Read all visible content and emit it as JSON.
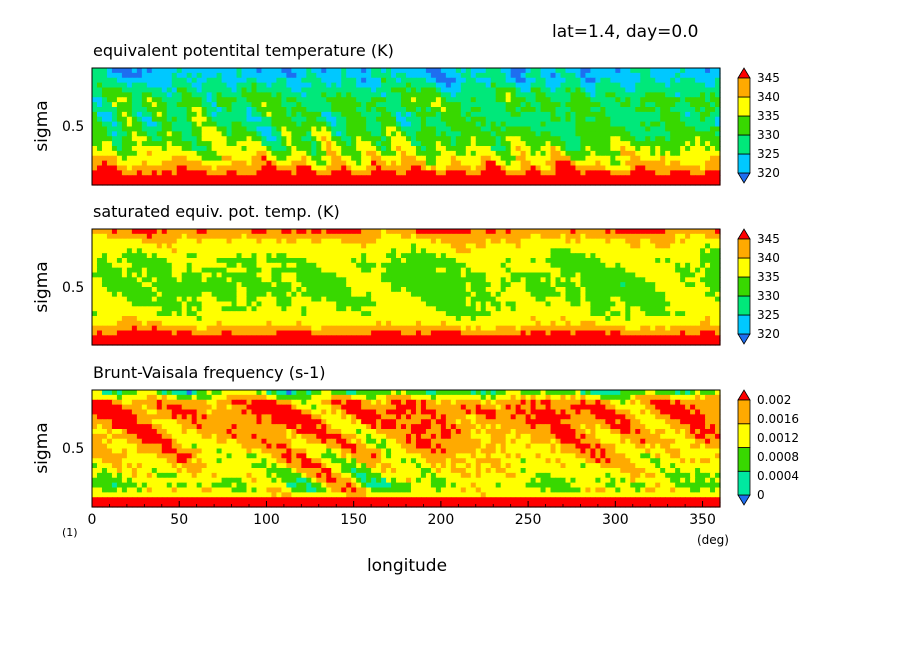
{
  "header": {
    "text": "lat=1.4, day=0.0"
  },
  "colors": {
    "levels_6": [
      "#1e6ef0",
      "#00c8ff",
      "#00e87a",
      "#38d800",
      "#ffff00",
      "#ffaa00",
      "#ff0000"
    ],
    "levels_5": [
      "#1e6ef0",
      "#00e8a0",
      "#38d800",
      "#ffff00",
      "#ffaa00",
      "#ff0000"
    ]
  },
  "xaxis": {
    "label": "longitude",
    "unit": "(deg)",
    "ticks": [
      "0",
      "50",
      "100",
      "150",
      "200",
      "250",
      "300",
      "350"
    ],
    "corner_note": "(1)"
  },
  "chart_data": [
    {
      "type": "heatmap",
      "title": "equivalent potentital temperature (K)",
      "ylabel": "sigma",
      "ytick": "0.5",
      "xlim": [
        0,
        360
      ],
      "ylim": [
        1,
        0
      ],
      "legend": [
        "345",
        "340",
        "335",
        "330",
        "325",
        "320"
      ],
      "levels": [
        320,
        325,
        330,
        335,
        340,
        345
      ],
      "profile": [
        322,
        324,
        327,
        331,
        330,
        329,
        331,
        333,
        336,
        340,
        346,
        350
      ],
      "noise": 9
    },
    {
      "type": "heatmap",
      "title": "saturated equiv. pot. temp. (K)",
      "ylabel": "sigma",
      "ytick": "0.5",
      "xlim": [
        0,
        360
      ],
      "ylim": [
        1,
        0
      ],
      "legend": [
        "345",
        "340",
        "335",
        "330",
        "325",
        "320"
      ],
      "levels": [
        320,
        325,
        330,
        335,
        340,
        345
      ],
      "profile": [
        346,
        340,
        337,
        335,
        335,
        334,
        334,
        335,
        336,
        339,
        346,
        350
      ],
      "noise": 5
    },
    {
      "type": "heatmap",
      "title": "Brunt-Vaisala frequency (s-1)",
      "ylabel": "sigma",
      "ytick": "0.5",
      "xlim": [
        0,
        360
      ],
      "ylim": [
        1,
        0
      ],
      "legend": [
        "0.002",
        "0.0016",
        "0.0012",
        "0.0008",
        "0.0004",
        "0"
      ],
      "levels": [
        0,
        0.0004,
        0.0008,
        0.0012,
        0.0016
      ],
      "profile": [
        0.0003,
        0.0014,
        0.0016,
        0.0015,
        0.0014,
        0.0013,
        0.0012,
        0.0011,
        0.001,
        0.0008,
        0.0012,
        0.003
      ],
      "noise": 0.0009
    }
  ]
}
